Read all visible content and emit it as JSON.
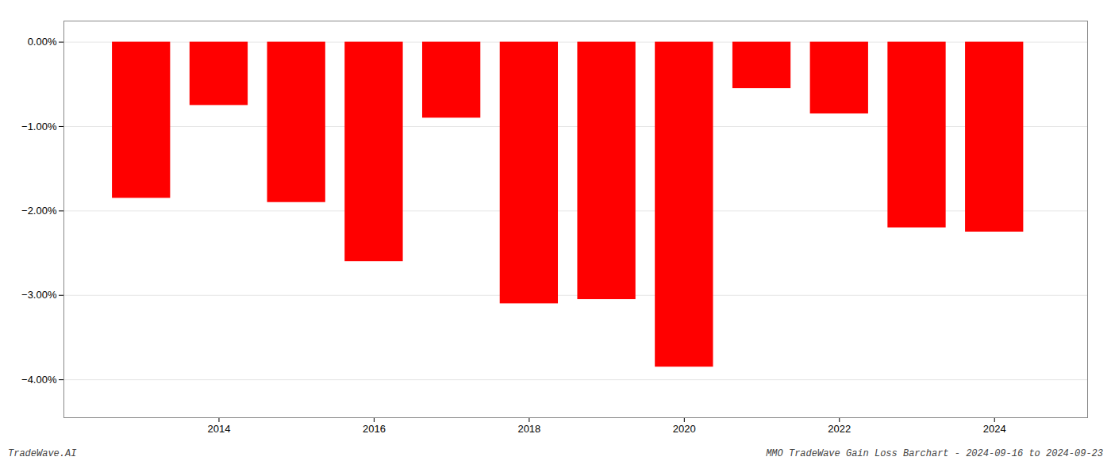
{
  "chart_data": {
    "type": "bar",
    "x": [
      2013,
      2014,
      2015,
      2016,
      2017,
      2018,
      2019,
      2020,
      2021,
      2022,
      2023,
      2024
    ],
    "values": [
      -1.85,
      -0.75,
      -1.9,
      -2.6,
      -0.9,
      -3.1,
      -3.05,
      -3.85,
      -0.55,
      -0.85,
      -2.2,
      -2.25
    ],
    "color": "#ff0000",
    "xlim": [
      2012.0,
      2025.2
    ],
    "xticks": [
      2014,
      2016,
      2018,
      2020,
      2022,
      2024
    ],
    "ylim": [
      -4.45,
      0.25
    ],
    "yticks": [
      {
        "value": 0.0,
        "label": "0.00%"
      },
      {
        "value": -1.0,
        "label": "−1.00%"
      },
      {
        "value": -2.0,
        "label": "−2.00%"
      },
      {
        "value": -3.0,
        "label": "−3.00%"
      },
      {
        "value": -4.0,
        "label": "−4.00%"
      }
    ],
    "grid": true,
    "annotations": [
      "TradeWave.AI",
      "MMO TradeWave Gain Loss Barchart - 2024-09-16 to 2024-09-23"
    ]
  }
}
